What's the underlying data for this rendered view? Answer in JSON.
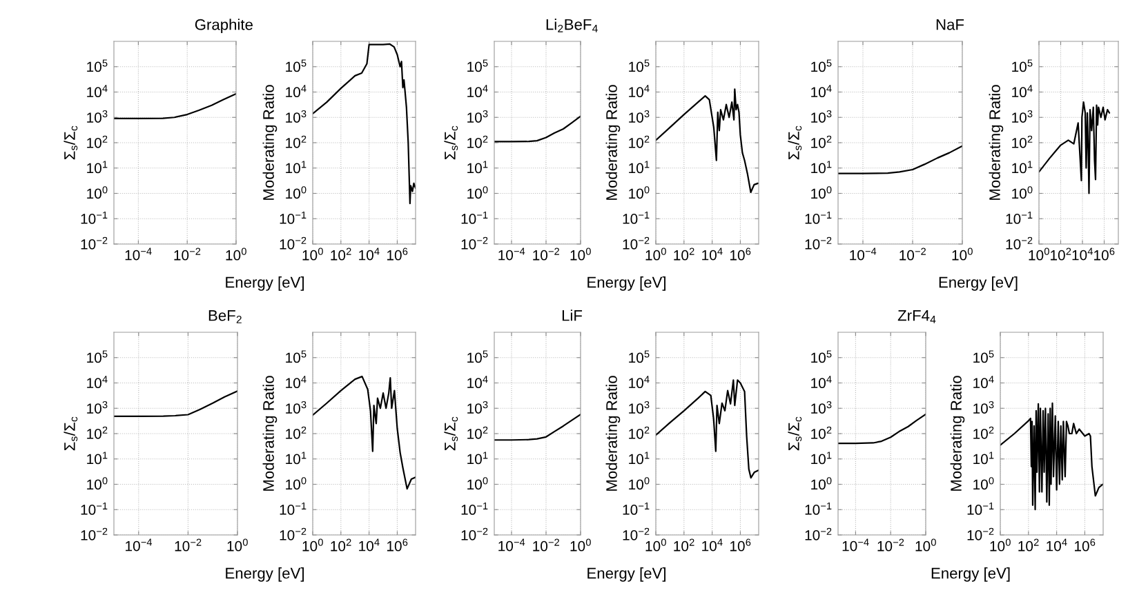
{
  "chart_data": [
    {
      "type": "line",
      "title": "Graphite",
      "xlabel": "Energy [eV]",
      "ylabel": "Σ$_{s}$/Σ$_{c}$",
      "log": "xy",
      "grid": true,
      "color": "#000000",
      "line_style": "solid",
      "marker": "none",
      "x": [
        1e-05,
        0.0001,
        0.001,
        0.003,
        0.01,
        0.03,
        0.1,
        0.3,
        1
      ],
      "values": [
        900,
        900,
        920,
        1000,
        1300,
        1900,
        3000,
        5000,
        8500
      ],
      "xlim": [
        1e-05,
        1
      ],
      "xticks": [
        {
          "value": 0.0001,
          "label": "10$^{−4}$"
        },
        {
          "value": 0.01,
          "label": "10$^{−2}$"
        },
        {
          "value": 1,
          "label": "10$^{0}$"
        }
      ],
      "ylim": [
        0.01,
        1000000.0
      ],
      "yticks": [
        {
          "value": 0.01,
          "label": "10$^{−2}$"
        },
        {
          "value": 0.1,
          "label": "10$^{−1}$"
        },
        {
          "value": 1,
          "label": "10$^{0}$"
        },
        {
          "value": 10,
          "label": "10$^{1}$"
        },
        {
          "value": 100,
          "label": "10$^{2}$"
        },
        {
          "value": 1000,
          "label": "10$^{3}$"
        },
        {
          "value": 10000,
          "label": "10$^{4}$"
        },
        {
          "value": 100000,
          "label": "10$^{5}$"
        }
      ]
    },
    {
      "type": "line",
      "ylabel": "Moderating Ratio",
      "log": "xy",
      "grid": true,
      "color": "#000000",
      "line_style": "solid",
      "marker": "none",
      "x": [
        1,
        10,
        100,
        1000,
        3000,
        7000,
        10000,
        100000,
        300000,
        600000,
        1000000.0,
        1600000.0,
        2000000.0,
        2500000.0,
        3000000.0,
        3500000.0,
        4500000.0,
        6000000.0,
        8000000.0,
        9000000.0,
        12000000.0,
        15000000.0,
        20000000.0
      ],
      "values": [
        1400,
        4000,
        14000,
        44000,
        56000,
        130000,
        750000,
        750000,
        780000,
        600000,
        300000,
        100000,
        160000,
        15000,
        30000,
        12000,
        2500,
        100,
        0.4,
        2,
        1.2,
        2.5,
        1.6
      ],
      "xlim": [
        1,
        20000000.0
      ],
      "xticks": [
        {
          "value": 1,
          "label": "10$^{0}$"
        },
        {
          "value": 100,
          "label": "10$^{2}$"
        },
        {
          "value": 10000,
          "label": "10$^{4}$"
        },
        {
          "value": 1000000,
          "label": "10$^{6}$"
        }
      ],
      "ylim": [
        0.01,
        1000000.0
      ],
      "yticks": [
        {
          "value": 0.01,
          "label": "10$^{−2}$"
        },
        {
          "value": 0.1,
          "label": "10$^{−1}$"
        },
        {
          "value": 1,
          "label": "10$^{0}$"
        },
        {
          "value": 10,
          "label": "10$^{1}$"
        },
        {
          "value": 100,
          "label": "10$^{2}$"
        },
        {
          "value": 1000,
          "label": "10$^{3}$"
        },
        {
          "value": 10000,
          "label": "10$^{4}$"
        },
        {
          "value": 100000,
          "label": "10$^{5}$"
        }
      ]
    },
    {
      "type": "line",
      "title": "Li$_{2}$BeF$_{4}$",
      "xlabel": "Energy [eV]",
      "ylabel": "Σ$_{s}$/Σ$_{c}$",
      "log": "xy",
      "grid": true,
      "color": "#000000",
      "line_style": "solid",
      "marker": "none",
      "x": [
        1e-05,
        0.0001,
        0.001,
        0.003,
        0.01,
        0.03,
        0.1,
        0.3,
        1
      ],
      "values": [
        110,
        110,
        112,
        120,
        160,
        240,
        350,
        600,
        1100
      ],
      "xlim": [
        1e-05,
        1
      ],
      "xticks": [
        {
          "value": 0.0001,
          "label": "10$^{−4}$"
        },
        {
          "value": 0.01,
          "label": "10$^{−2}$"
        },
        {
          "value": 1,
          "label": "10$^{0}$"
        }
      ],
      "ylim": [
        0.01,
        1000000.0
      ],
      "yticks": [
        {
          "value": 0.01,
          "label": "10$^{−2}$"
        },
        {
          "value": 0.1,
          "label": "10$^{−1}$"
        },
        {
          "value": 1,
          "label": "10$^{0}$"
        },
        {
          "value": 10,
          "label": "10$^{1}$"
        },
        {
          "value": 100,
          "label": "10$^{2}$"
        },
        {
          "value": 1000,
          "label": "10$^{3}$"
        },
        {
          "value": 10000,
          "label": "10$^{4}$"
        },
        {
          "value": 100000,
          "label": "10$^{5}$"
        }
      ]
    },
    {
      "type": "line",
      "ylabel": "Moderating Ratio",
      "log": "xy",
      "grid": true,
      "color": "#000000",
      "line_style": "solid",
      "marker": "none",
      "x": [
        1,
        10,
        100,
        1000,
        3200,
        6300,
        13000,
        20000,
        25000,
        32000,
        40000,
        63000,
        100000,
        160000,
        250000,
        350000,
        400000,
        500000,
        630000,
        800000,
        1000000.0,
        1400000.0,
        2000000.0,
        3200000.0,
        5500000.0,
        9500000.0,
        18000000.0
      ],
      "values": [
        125,
        400,
        1300,
        4000,
        7000,
        5000,
        400,
        20,
        1600,
        300,
        2000,
        800,
        3200,
        1000,
        4000,
        800,
        13000,
        2000,
        3200,
        1600,
        200,
        40,
        20,
        6,
        1.1,
        2.2,
        2.5
      ],
      "xlim": [
        1,
        20000000.0
      ],
      "xticks": [
        {
          "value": 1,
          "label": "10$^{0}$"
        },
        {
          "value": 100,
          "label": "10$^{2}$"
        },
        {
          "value": 10000,
          "label": "10$^{4}$"
        },
        {
          "value": 1000000,
          "label": "10$^{6}$"
        }
      ],
      "ylim": [
        0.01,
        1000000.0
      ],
      "yticks": [
        {
          "value": 0.01,
          "label": "10$^{−2}$"
        },
        {
          "value": 0.1,
          "label": "10$^{−1}$"
        },
        {
          "value": 1,
          "label": "10$^{0}$"
        },
        {
          "value": 10,
          "label": "10$^{1}$"
        },
        {
          "value": 100,
          "label": "10$^{2}$"
        },
        {
          "value": 1000,
          "label": "10$^{3}$"
        },
        {
          "value": 10000,
          "label": "10$^{4}$"
        },
        {
          "value": 100000,
          "label": "10$^{5}$"
        }
      ]
    },
    {
      "type": "line",
      "title": "NaF",
      "xlabel": "Energy [eV]",
      "ylabel": "Σ$_{s}$/Σ$_{c}$",
      "log": "xy",
      "grid": true,
      "color": "#000000",
      "line_style": "solid",
      "marker": "none",
      "x": [
        1e-05,
        0.0001,
        0.001,
        0.003,
        0.01,
        0.03,
        0.1,
        0.3,
        1
      ],
      "values": [
        6.1,
        6.1,
        6.3,
        7,
        8.7,
        14,
        25,
        40,
        74
      ],
      "xlim": [
        1e-05,
        1
      ],
      "xticks": [
        {
          "value": 0.0001,
          "label": "10$^{−4}$"
        },
        {
          "value": 0.01,
          "label": "10$^{−2}$"
        },
        {
          "value": 1,
          "label": "10$^{0}$"
        }
      ],
      "ylim": [
        0.01,
        1000000.0
      ],
      "yticks": [
        {
          "value": 0.01,
          "label": "10$^{−2}$"
        },
        {
          "value": 0.1,
          "label": "10$^{−1}$"
        },
        {
          "value": 1,
          "label": "10$^{0}$"
        },
        {
          "value": 10,
          "label": "10$^{1}$"
        },
        {
          "value": 100,
          "label": "10$^{2}$"
        },
        {
          "value": 1000,
          "label": "10$^{3}$"
        },
        {
          "value": 10000,
          "label": "10$^{4}$"
        },
        {
          "value": 100000,
          "label": "10$^{5}$"
        }
      ]
    },
    {
      "type": "line",
      "ylabel": "Moderating Ratio",
      "log": "xy",
      "grid": true,
      "color": "#000000",
      "line_style": "solid",
      "marker": "none",
      "x": [
        1,
        10,
        100,
        500,
        1600,
        4000,
        8000,
        9000,
        12600,
        18000,
        22000,
        28000,
        35000,
        40000,
        50000,
        70000,
        100000,
        130000,
        160000,
        200000,
        250000,
        300000,
        500000,
        800000,
        1200000.0,
        2000000.0,
        3000000.0
      ],
      "values": [
        7,
        25,
        80,
        125,
        90,
        600,
        3.2,
        1000,
        4000,
        1500,
        10,
        1500,
        30,
        1.0,
        2000,
        300,
        2500,
        20,
        3.5,
        3000,
        500,
        2500,
        1000,
        2500,
        800,
        2000,
        1500
      ],
      "xlim": [
        1,
        20000000.0
      ],
      "xticks": [
        {
          "value": 1,
          "label": "10$^{0}$"
        },
        {
          "value": 100,
          "label": "10$^{2}$"
        },
        {
          "value": 10000,
          "label": "10$^{4}$"
        },
        {
          "value": 1000000,
          "label": "10$^{6}$"
        }
      ],
      "ylim": [
        0.01,
        1000000.0
      ],
      "yticks": [
        {
          "value": 0.01,
          "label": "10$^{−2}$"
        },
        {
          "value": 0.1,
          "label": "10$^{−1}$"
        },
        {
          "value": 1,
          "label": "10$^{0}$"
        },
        {
          "value": 10,
          "label": "10$^{1}$"
        },
        {
          "value": 100,
          "label": "10$^{2}$"
        },
        {
          "value": 1000,
          "label": "10$^{3}$"
        },
        {
          "value": 10000,
          "label": "10$^{4}$"
        },
        {
          "value": 100000,
          "label": "10$^{5}$"
        }
      ]
    },
    {
      "type": "line",
      "title": "BeF$_{2}$",
      "xlabel": "Energy [eV]",
      "ylabel": "Σ$_{s}$/Σ$_{c}$",
      "log": "xy",
      "grid": true,
      "color": "#000000",
      "line_style": "solid",
      "marker": "none",
      "x": [
        1e-05,
        0.0001,
        0.001,
        0.003,
        0.01,
        0.03,
        0.1,
        0.3,
        1
      ],
      "values": [
        480,
        480,
        490,
        510,
        560,
        900,
        1600,
        2800,
        4800
      ],
      "xlim": [
        1e-05,
        1
      ],
      "xticks": [
        {
          "value": 0.0001,
          "label": "10$^{−4}$"
        },
        {
          "value": 0.01,
          "label": "10$^{−2}$"
        },
        {
          "value": 1,
          "label": "10$^{0}$"
        }
      ],
      "ylim": [
        0.01,
        1000000.0
      ],
      "yticks": [
        {
          "value": 0.01,
          "label": "10$^{−2}$"
        },
        {
          "value": 0.1,
          "label": "10$^{−1}$"
        },
        {
          "value": 1,
          "label": "10$^{0}$"
        },
        {
          "value": 10,
          "label": "10$^{1}$"
        },
        {
          "value": 100,
          "label": "10$^{2}$"
        },
        {
          "value": 1000,
          "label": "10$^{3}$"
        },
        {
          "value": 10000,
          "label": "10$^{4}$"
        },
        {
          "value": 100000,
          "label": "10$^{5}$"
        }
      ]
    },
    {
      "type": "line",
      "ylabel": "Moderating Ratio",
      "log": "xy",
      "grid": true,
      "color": "#000000",
      "line_style": "solid",
      "marker": "none",
      "x": [
        1,
        10,
        100,
        1000,
        3200,
        8000,
        12600,
        18000,
        22000,
        32000,
        40000,
        63000,
        100000,
        160000,
        250000,
        320000,
        400000,
        630000,
        1000000.0,
        1600000.0,
        2500000.0,
        5000000.0,
        10000000.0,
        20000000.0
      ],
      "values": [
        540,
        1600,
        5000,
        14000,
        18000,
        5600,
        800,
        20,
        1300,
        250,
        2500,
        1000,
        4000,
        1000,
        4000,
        16000,
        1000,
        5000,
        160,
        18,
        4.5,
        0.66,
        1.6,
        1.9
      ],
      "xlim": [
        1,
        20000000.0
      ],
      "xticks": [
        {
          "value": 1,
          "label": "10$^{0}$"
        },
        {
          "value": 100,
          "label": "10$^{2}$"
        },
        {
          "value": 10000,
          "label": "10$^{4}$"
        },
        {
          "value": 1000000,
          "label": "10$^{6}$"
        }
      ],
      "ylim": [
        0.01,
        1000000.0
      ],
      "yticks": [
        {
          "value": 0.01,
          "label": "10$^{−2}$"
        },
        {
          "value": 0.1,
          "label": "10$^{−1}$"
        },
        {
          "value": 1,
          "label": "10$^{0}$"
        },
        {
          "value": 10,
          "label": "10$^{1}$"
        },
        {
          "value": 100,
          "label": "10$^{2}$"
        },
        {
          "value": 1000,
          "label": "10$^{3}$"
        },
        {
          "value": 10000,
          "label": "10$^{4}$"
        },
        {
          "value": 100000,
          "label": "10$^{5}$"
        }
      ]
    },
    {
      "type": "line",
      "title": "LiF",
      "xlabel": "Energy [eV]",
      "ylabel": "Σ$_{s}$/Σ$_{c}$",
      "log": "xy",
      "grid": true,
      "color": "#000000",
      "line_style": "solid",
      "marker": "none",
      "x": [
        1e-05,
        0.0001,
        0.001,
        0.003,
        0.01,
        0.03,
        0.1,
        0.3,
        1
      ],
      "values": [
        56,
        56,
        58,
        62,
        74,
        120,
        200,
        330,
        570
      ],
      "xlim": [
        1e-05,
        1
      ],
      "xticks": [
        {
          "value": 0.0001,
          "label": "10$^{−4}$"
        },
        {
          "value": 0.01,
          "label": "10$^{−2}$"
        },
        {
          "value": 1,
          "label": "10$^{0}$"
        }
      ],
      "ylim": [
        0.01,
        1000000.0
      ],
      "yticks": [
        {
          "value": 0.01,
          "label": "10$^{−2}$"
        },
        {
          "value": 0.1,
          "label": "10$^{−1}$"
        },
        {
          "value": 1,
          "label": "10$^{0}$"
        },
        {
          "value": 10,
          "label": "10$^{1}$"
        },
        {
          "value": 100,
          "label": "10$^{2}$"
        },
        {
          "value": 1000,
          "label": "10$^{3}$"
        },
        {
          "value": 10000,
          "label": "10$^{4}$"
        },
        {
          "value": 100000,
          "label": "10$^{5}$"
        }
      ]
    },
    {
      "type": "line",
      "ylabel": "Moderating Ratio",
      "log": "xy",
      "grid": true,
      "color": "#000000",
      "line_style": "solid",
      "marker": "none",
      "x": [
        1,
        10,
        100,
        1000,
        3200,
        8000,
        12600,
        18000,
        22000,
        32000,
        50000,
        80000,
        126000,
        200000,
        320000,
        400000,
        630000,
        1000000.0,
        2000000.0,
        2800000.0,
        4000000.0,
        5600000.0,
        10000000.0,
        20000000.0
      ],
      "values": [
        87,
        270,
        800,
        2500,
        4600,
        3200,
        400,
        20,
        1300,
        250,
        1600,
        800,
        5000,
        1500,
        13000,
        1300,
        13000,
        10000,
        4600,
        80,
        4,
        1.8,
        3,
        3.6
      ],
      "xlim": [
        1,
        20000000.0
      ],
      "xticks": [
        {
          "value": 1,
          "label": "10$^{0}$"
        },
        {
          "value": 100,
          "label": "10$^{2}$"
        },
        {
          "value": 10000,
          "label": "10$^{4}$"
        },
        {
          "value": 1000000,
          "label": "10$^{6}$"
        }
      ],
      "ylim": [
        0.01,
        1000000.0
      ],
      "yticks": [
        {
          "value": 0.01,
          "label": "10$^{−2}$"
        },
        {
          "value": 0.1,
          "label": "10$^{−1}$"
        },
        {
          "value": 1,
          "label": "10$^{0}$"
        },
        {
          "value": 10,
          "label": "10$^{1}$"
        },
        {
          "value": 100,
          "label": "10$^{2}$"
        },
        {
          "value": 1000,
          "label": "10$^{3}$"
        },
        {
          "value": 10000,
          "label": "10$^{4}$"
        },
        {
          "value": 100000,
          "label": "10$^{5}$"
        }
      ]
    },
    {
      "type": "line",
      "title": "ZrF4$_{4}$",
      "xlabel": "Energy [eV]",
      "ylabel": "Σ$_{s}$/Σ$_{c}$",
      "log": "xy",
      "grid": true,
      "color": "#000000",
      "line_style": "solid",
      "marker": "none",
      "x": [
        1e-05,
        0.0001,
        0.001,
        0.003,
        0.01,
        0.03,
        0.1,
        0.3,
        1
      ],
      "values": [
        41,
        41,
        43,
        50,
        72,
        120,
        190,
        330,
        580
      ],
      "xlim": [
        1e-05,
        1
      ],
      "xticks": [
        {
          "value": 0.0001,
          "label": "10$^{−4}$"
        },
        {
          "value": 0.01,
          "label": "10$^{−2}$"
        },
        {
          "value": 1,
          "label": "10$^{0}$"
        }
      ],
      "ylim": [
        0.01,
        1000000.0
      ],
      "yticks": [
        {
          "value": 0.01,
          "label": "10$^{−2}$"
        },
        {
          "value": 0.1,
          "label": "10$^{−1}$"
        },
        {
          "value": 1,
          "label": "10$^{0}$"
        },
        {
          "value": 10,
          "label": "10$^{1}$"
        },
        {
          "value": 100,
          "label": "10$^{2}$"
        },
        {
          "value": 1000,
          "label": "10$^{3}$"
        },
        {
          "value": 10000,
          "label": "10$^{4}$"
        },
        {
          "value": 100000,
          "label": "10$^{5}$"
        }
      ]
    },
    {
      "type": "line",
      "ylabel": "Moderating Ratio",
      "log": "xy",
      "grid": true,
      "color": "#000000",
      "line_style": "solid",
      "marker": "none",
      "x": [
        1,
        10,
        100,
        140,
        160,
        180,
        200,
        250,
        300,
        350,
        400,
        500,
        600,
        700,
        900,
        1100,
        1300,
        1600,
        2000,
        2500,
        3000,
        3500,
        4000,
        5000,
        6000,
        8000,
        10000,
        13000,
        16000,
        20000,
        25000,
        30000,
        40000,
        50000,
        63000,
        80000,
        120000,
        160000,
        250000,
        400000,
        1000000.0,
        2000000.0,
        2500000.0,
        3200000.0,
        5600000.0,
        10000000.0,
        19000000.0
      ],
      "values": [
        35,
        100,
        320,
        400,
        5,
        300,
        0.15,
        200,
        0.1,
        800,
        3,
        1500,
        0.5,
        1000,
        0.5,
        800,
        3,
        1000,
        0.2,
        600,
        0.15,
        1000,
        1,
        1600,
        2,
        500,
        0.6,
        300,
        1,
        200,
        1.5,
        300,
        2,
        300,
        200,
        100,
        100,
        250,
        100,
        150,
        80,
        100,
        80,
        5,
        0.35,
        0.75,
        1.0
      ],
      "xlim": [
        1,
        20000000.0
      ],
      "xticks": [
        {
          "value": 1,
          "label": "10$^{0}$"
        },
        {
          "value": 100,
          "label": "10$^{2}$"
        },
        {
          "value": 10000,
          "label": "10$^{4}$"
        },
        {
          "value": 1000000,
          "label": "10$^{6}$"
        }
      ],
      "ylim": [
        0.01,
        1000000.0
      ],
      "yticks": [
        {
          "value": 0.01,
          "label": "10$^{−2}$"
        },
        {
          "value": 0.1,
          "label": "10$^{−1}$"
        },
        {
          "value": 1,
          "label": "10$^{0}$"
        },
        {
          "value": 10,
          "label": "10$^{1}$"
        },
        {
          "value": 100,
          "label": "10$^{2}$"
        },
        {
          "value": 1000,
          "label": "10$^{3}$"
        },
        {
          "value": 10000,
          "label": "10$^{4}$"
        },
        {
          "value": 100000,
          "label": "10$^{5}$"
        }
      ]
    }
  ]
}
